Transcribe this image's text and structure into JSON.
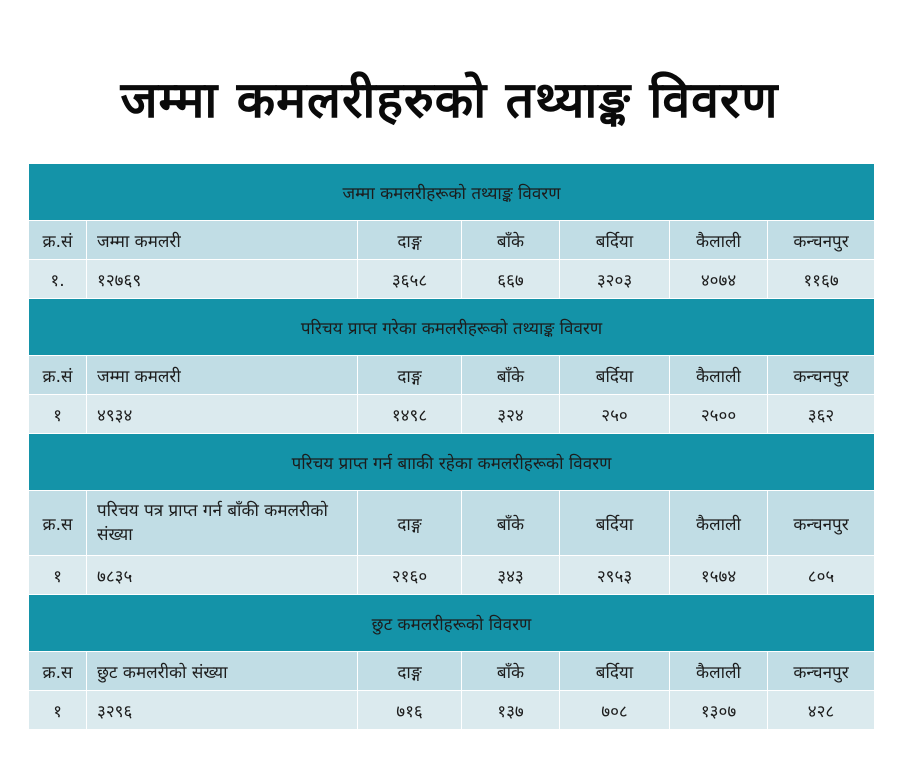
{
  "page_title": "जम्मा कमलरीहरुको तथ्याङ्क विवरण",
  "sections": [
    {
      "title": "जम्मा कमलरीहरूको तथ्याङ्क विवरण",
      "headers": [
        "क्र.सं",
        "जम्मा कमलरी",
        "दाङ्ग",
        "बाँके",
        "बर्दिया",
        "कैलाली",
        "कन्चनपुर"
      ],
      "row": [
        "१.",
        "१२७६९",
        "३६५८",
        "६६७",
        "३२०३",
        "४०७४",
        "११६७"
      ]
    },
    {
      "title": "परिचय प्राप्त गरेका कमलरीहरूको तथ्याङ्क विवरण",
      "headers": [
        "क्र.सं",
        "जम्मा कमलरी",
        "दाङ्ग",
        "बाँके",
        "बर्दिया",
        "कैलाली",
        "कन्चनपुर"
      ],
      "row": [
        "१",
        "४९३४",
        "१४९८",
        "३२४",
        "२५०",
        "२५००",
        "३६२"
      ]
    },
    {
      "title": "परिचय प्राप्त गर्न बााकी रहेका कमलरीहरूको विवरण",
      "headers": [
        "क्र.स",
        "परिचय पत्र प्राप्त गर्न बाँकी कमलरीको संख्या",
        "दाङ्ग",
        "बाँके",
        "बर्दिया",
        "कैलाली",
        "कन्चनपुर"
      ],
      "row": [
        "१",
        "७८३५",
        "२१६०",
        "३४३",
        "२९५३",
        "१५७४",
        "८०५"
      ]
    },
    {
      "title": "छुट कमलरीहरूको विवरण",
      "headers": [
        "क्र.स",
        "छुट कमलरीको संख्या",
        "दाङ्ग",
        "बाँके",
        "बर्दिया",
        "कैलाली",
        "कन्चनपुर"
      ],
      "row": [
        "१",
        "३२९६",
        "७१६",
        "१३७",
        "७०८",
        "१३०७",
        "४२८"
      ]
    }
  ],
  "colors": {
    "section_header": "#1493a8",
    "header_row": "#c1dde5",
    "data_row": "#dbeaee"
  }
}
